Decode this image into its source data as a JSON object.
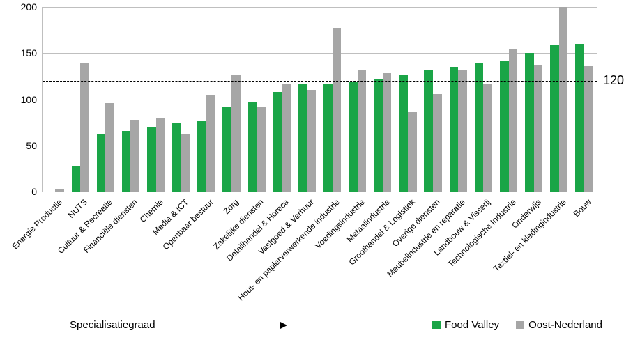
{
  "chart": {
    "type": "bar",
    "background_color": "#ffffff",
    "grid_color": "#bfbfbf",
    "axis_color": "#bfbfbf",
    "ylim": [
      0,
      200
    ],
    "ytick_step": 50,
    "ytick_labels": [
      "0",
      "50",
      "100",
      "150",
      "200"
    ],
    "tick_fontsize": 14,
    "category_fontsize": 12,
    "category_rotation_deg": -45,
    "reference_line": {
      "value": 120,
      "label": "120",
      "style": "dashed",
      "color": "#000000",
      "label_fontsize": 18
    },
    "series": [
      {
        "name": "Food Valley",
        "color": "#1aa547"
      },
      {
        "name": "Oost-Nederland",
        "color": "#a6a6a6"
      }
    ],
    "categories": [
      "Energie Productie",
      "NUTS",
      "Cultuur & Recreatie",
      "Financiële diensten",
      "Chemie",
      "Media & ICT",
      "Openbaar bestuur",
      "Zorg",
      "Zakelijke diensten",
      "Detailhandel & Horeca",
      "Vastgoed & Verhuur",
      "Hout- en papierverwerkende industrie",
      "Voedingsindustrie",
      "Metaalindustrie",
      "Groothandel & Logistiek",
      "Overige diensten",
      "Meubelindustrie en reparatie",
      "Landbouw & Visserij",
      "Technologische Industrie",
      "Onderwijs",
      "Textiel- en kledingindustrie",
      "Bouw"
    ],
    "values_food_valley": [
      0,
      28,
      62,
      66,
      70,
      74,
      77,
      92,
      97,
      108,
      117,
      117,
      119,
      122,
      127,
      132,
      135,
      140,
      141,
      150,
      159,
      160
    ],
    "values_oost_nederland": [
      3,
      140,
      96,
      78,
      80,
      62,
      104,
      126,
      91,
      117,
      110,
      177,
      132,
      128,
      86,
      106,
      131,
      117,
      155,
      137,
      200,
      136
    ],
    "bar_group_gap_ratio": 0.3,
    "xaxis_label": "Specialisatiegraad",
    "legend_fontsize": 15
  }
}
